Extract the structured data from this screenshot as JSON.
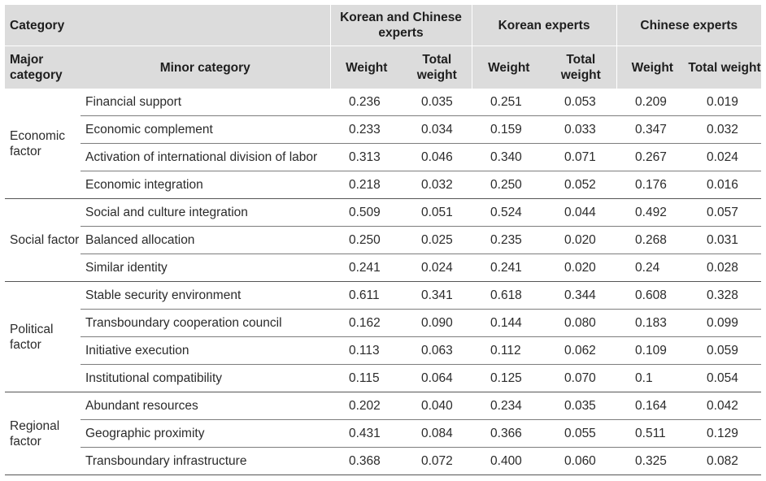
{
  "header": {
    "category": "Category",
    "groups": [
      "Korean and Chinese experts",
      "Korean experts",
      "Chinese experts"
    ],
    "major_category": "Major category",
    "minor_category": "Minor category",
    "weight": "Weight",
    "total_weight": "Total weight"
  },
  "groups": [
    {
      "major": "Economic factor",
      "rows": [
        {
          "minor": "Financial support",
          "values": [
            "0.236",
            "0.035",
            "0.251",
            "0.053",
            "0.209",
            "0.019"
          ]
        },
        {
          "minor": "Economic complement",
          "values": [
            "0.233",
            "0.034",
            "0.159",
            "0.033",
            "0.347",
            "0.032"
          ]
        },
        {
          "minor": "Activation of international division of labor",
          "values": [
            "0.313",
            "0.046",
            "0.340",
            "0.071",
            "0.267",
            "0.024"
          ]
        },
        {
          "minor": "Economic integration",
          "values": [
            "0.218",
            "0.032",
            "0.250",
            "0.052",
            "0.176",
            "0.016"
          ]
        }
      ]
    },
    {
      "major": "Social factor",
      "rows": [
        {
          "minor": "Social and culture integration",
          "values": [
            "0.509",
            "0.051",
            "0.524",
            "0.044",
            "0.492",
            "0.057"
          ]
        },
        {
          "minor": "Balanced allocation",
          "values": [
            "0.250",
            "0.025",
            "0.235",
            "0.020",
            "0.268",
            "0.031"
          ]
        },
        {
          "minor": "Similar identity",
          "values": [
            "0.241",
            "0.024",
            "0.241",
            "0.020",
            "0.24",
            "0.028"
          ]
        }
      ]
    },
    {
      "major": "Political factor",
      "rows": [
        {
          "minor": "Stable security environment",
          "values": [
            "0.611",
            "0.341",
            "0.618",
            "0.344",
            "0.608",
            "0.328"
          ]
        },
        {
          "minor": "Transboundary cooperation council",
          "values": [
            "0.162",
            "0.090",
            "0.144",
            "0.080",
            "0.183",
            "0.099"
          ]
        },
        {
          "minor": "Initiative execution",
          "values": [
            "0.113",
            "0.063",
            "0.112",
            "0.062",
            "0.109",
            "0.059"
          ]
        },
        {
          "minor": "Institutional compatibility",
          "values": [
            "0.115",
            "0.064",
            "0.125",
            "0.070",
            "0.1",
            "0.054"
          ]
        }
      ]
    },
    {
      "major": "Regional factor",
      "rows": [
        {
          "minor": "Abundant resources",
          "values": [
            "0.202",
            "0.040",
            "0.234",
            "0.035",
            "0.164",
            "0.042"
          ]
        },
        {
          "minor": "Geographic proximity",
          "values": [
            "0.431",
            "0.084",
            "0.366",
            "0.055",
            "0.511",
            "0.129"
          ]
        },
        {
          "minor": "Transboundary infrastructure",
          "values": [
            "0.368",
            "0.072",
            "0.400",
            "0.060",
            "0.325",
            "0.082"
          ]
        }
      ]
    }
  ]
}
